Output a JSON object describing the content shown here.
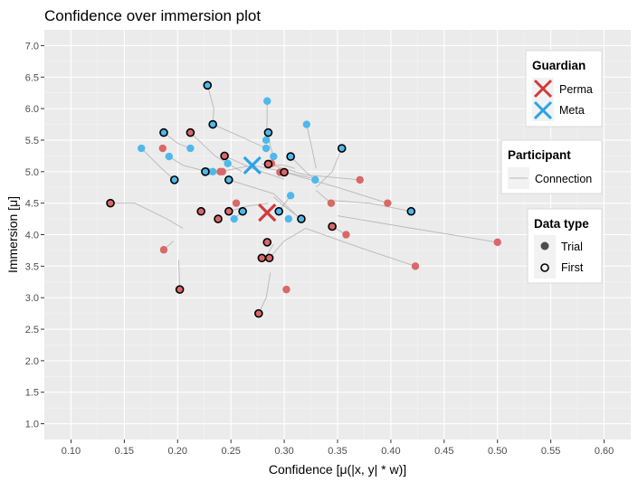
{
  "chart_data": {
    "type": "scatter",
    "title": "Confidence over immersion plot",
    "xlabel": "Confidence [μ(|x, y| * w)]",
    "ylabel": "Immersion [μ]",
    "xlim": [
      0.075,
      0.625
    ],
    "ylim": [
      0.75,
      7.25
    ],
    "x_ticks": [
      "0.10",
      "0.15",
      "0.20",
      "0.25",
      "0.30",
      "0.35",
      "0.40",
      "0.45",
      "0.50",
      "0.55",
      "0.60"
    ],
    "y_ticks": [
      "1.0",
      "1.5",
      "2.0",
      "2.5",
      "3.0",
      "3.5",
      "4.0",
      "4.5",
      "5.0",
      "5.5",
      "6.0",
      "6.5",
      "7.0"
    ],
    "grid": true,
    "colors": {
      "perma": "#d13b3b",
      "perma_point": "#d96868",
      "meta": "#2aa3e8",
      "meta_point": "#4fb8ec",
      "connection": "#b8b8b8",
      "panel": "#ebebeb"
    },
    "legends": [
      {
        "title": "Guardian",
        "entries": [
          {
            "label": "Perma",
            "kind": "cross",
            "color": "#d13b3b"
          },
          {
            "label": "Meta",
            "kind": "cross",
            "color": "#2aa3e8"
          }
        ]
      },
      {
        "title": "Participant",
        "entries": [
          {
            "label": "Connection",
            "kind": "line",
            "color": "#b8b8b8"
          }
        ]
      },
      {
        "title": "Data type",
        "entries": [
          {
            "label": "Trial",
            "kind": "filled"
          },
          {
            "label": "First",
            "kind": "ring"
          }
        ]
      }
    ],
    "series": [
      {
        "name": "Perma",
        "centroid": [
          0.284,
          4.35
        ],
        "connections": [
          [
            [
              0.137,
              4.5
            ],
            [
              0.16,
              4.5
            ],
            [
              0.19,
              4.25
            ],
            [
              0.205,
              4.1
            ]
          ],
          [
            [
              0.187,
              3.76
            ],
            [
              0.196,
              3.9
            ]
          ],
          [
            [
              0.202,
              3.13
            ],
            [
              0.201,
              3.6
            ]
          ],
          [
            [
              0.212,
              5.62
            ],
            [
              0.235,
              5.25
            ],
            [
              0.26,
              5.0
            ]
          ],
          [
            [
              0.24,
              5.0
            ],
            [
              0.27,
              5.1
            ],
            [
              0.3,
              5.0
            ],
            [
              0.325,
              4.9
            ]
          ],
          [
            [
              0.244,
              5.25
            ],
            [
              0.27,
              5.05
            ],
            [
              0.3,
              4.88
            ]
          ],
          [
            [
              0.248,
              4.37
            ],
            [
              0.265,
              4.45
            ],
            [
              0.285,
              4.5
            ]
          ],
          [
            [
              0.279,
              5.12
            ],
            [
              0.3,
              5.1
            ],
            [
              0.31,
              5.05
            ]
          ],
          [
            [
              0.285,
              5.12
            ],
            [
              0.32,
              4.95
            ],
            [
              0.371,
              4.87
            ]
          ],
          [
            [
              0.3,
              4.99
            ],
            [
              0.35,
              4.75
            ],
            [
              0.397,
              4.5
            ]
          ],
          [
            [
              0.276,
              2.75
            ],
            [
              0.283,
              3.0
            ],
            [
              0.287,
              3.4
            ]
          ],
          [
            [
              0.344,
              4.5
            ],
            [
              0.33,
              4.7
            ]
          ],
          [
            [
              0.345,
              4.13
            ],
            [
              0.358,
              4.0
            ]
          ],
          [
            [
              0.282,
              3.63
            ],
            [
              0.29,
              3.85
            ]
          ],
          [
            [
              0.286,
              3.63
            ],
            [
              0.3,
              3.9
            ],
            [
              0.32,
              4.1
            ]
          ],
          [
            [
              0.5,
              3.88
            ],
            [
              0.42,
              4.1
            ],
            [
              0.35,
              4.3
            ]
          ],
          [
            [
              0.423,
              3.5
            ],
            [
              0.37,
              3.8
            ],
            [
              0.32,
              4.1
            ]
          ]
        ],
        "trial": [
          [
            0.186,
            5.37
          ],
          [
            0.24,
            5.0
          ],
          [
            0.242,
            5.0
          ],
          [
            0.255,
            4.5
          ],
          [
            0.288,
            5.13
          ],
          [
            0.3,
            5.0
          ],
          [
            0.296,
            4.99
          ],
          [
            0.371,
            4.87
          ],
          [
            0.397,
            4.5
          ],
          [
            0.358,
            4.0
          ],
          [
            0.344,
            4.5
          ],
          [
            0.302,
            3.13
          ],
          [
            0.5,
            3.88
          ],
          [
            0.423,
            3.5
          ],
          [
            0.187,
            3.76
          ]
        ],
        "first": [
          [
            0.137,
            4.5
          ],
          [
            0.202,
            3.13
          ],
          [
            0.212,
            5.62
          ],
          [
            0.222,
            4.37
          ],
          [
            0.238,
            4.25
          ],
          [
            0.244,
            5.25
          ],
          [
            0.248,
            4.37
          ],
          [
            0.284,
            3.88
          ],
          [
            0.279,
            3.63
          ],
          [
            0.286,
            3.63
          ],
          [
            0.276,
            2.75
          ],
          [
            0.285,
            5.12
          ],
          [
            0.3,
            4.99
          ],
          [
            0.345,
            4.13
          ]
        ]
      },
      {
        "name": "Meta",
        "centroid": [
          0.27,
          5.1
        ],
        "connections": [
          [
            [
              0.166,
              5.37
            ],
            [
              0.185,
              5.05
            ],
            [
              0.197,
              4.87
            ]
          ],
          [
            [
              0.187,
              5.62
            ],
            [
              0.2,
              5.45
            ],
            [
              0.212,
              5.37
            ]
          ],
          [
            [
              0.192,
              5.24
            ],
            [
              0.205,
              5.1
            ],
            [
              0.228,
              5.0
            ]
          ],
          [
            [
              0.228,
              6.37
            ],
            [
              0.234,
              6.0
            ],
            [
              0.233,
              5.75
            ]
          ],
          [
            [
              0.233,
              5.75
            ],
            [
              0.26,
              5.55
            ],
            [
              0.283,
              5.37
            ]
          ],
          [
            [
              0.248,
              4.87
            ],
            [
              0.29,
              4.65
            ],
            [
              0.315,
              4.25
            ]
          ],
          [
            [
              0.253,
              4.25
            ],
            [
              0.261,
              4.37
            ]
          ],
          [
            [
              0.284,
              6.12
            ],
            [
              0.284,
              5.8
            ],
            [
              0.283,
              5.5
            ]
          ],
          [
            [
              0.285,
              5.62
            ],
            [
              0.287,
              5.4
            ],
            [
              0.29,
              5.24
            ]
          ],
          [
            [
              0.306,
              5.24
            ],
            [
              0.32,
              5.0
            ],
            [
              0.329,
              4.87
            ]
          ],
          [
            [
              0.321,
              5.75
            ],
            [
              0.325,
              5.45
            ],
            [
              0.33,
              5.05
            ]
          ],
          [
            [
              0.354,
              5.37
            ],
            [
              0.345,
              5.0
            ],
            [
              0.33,
              4.75
            ]
          ],
          [
            [
              0.419,
              4.37
            ],
            [
              0.38,
              4.5
            ],
            [
              0.34,
              4.55
            ]
          ],
          [
            [
              0.295,
              4.37
            ],
            [
              0.306,
              4.62
            ]
          ],
          [
            [
              0.316,
              4.25
            ],
            [
              0.3,
              4.45
            ],
            [
              0.29,
              4.6
            ]
          ]
        ],
        "trial": [
          [
            0.166,
            5.37
          ],
          [
            0.192,
            5.24
          ],
          [
            0.212,
            5.37
          ],
          [
            0.228,
            5.0
          ],
          [
            0.233,
            5.0
          ],
          [
            0.247,
            5.13
          ],
          [
            0.253,
            4.25
          ],
          [
            0.283,
            5.37
          ],
          [
            0.284,
            6.12
          ],
          [
            0.283,
            5.5
          ],
          [
            0.29,
            5.24
          ],
          [
            0.306,
            4.62
          ],
          [
            0.304,
            4.25
          ],
          [
            0.321,
            5.75
          ],
          [
            0.329,
            4.87
          ]
        ],
        "first": [
          [
            0.187,
            5.62
          ],
          [
            0.197,
            4.87
          ],
          [
            0.226,
            5.0
          ],
          [
            0.228,
            6.37
          ],
          [
            0.233,
            5.75
          ],
          [
            0.248,
            4.87
          ],
          [
            0.261,
            4.37
          ],
          [
            0.285,
            5.62
          ],
          [
            0.295,
            4.37
          ],
          [
            0.306,
            5.24
          ],
          [
            0.316,
            4.25
          ],
          [
            0.354,
            5.37
          ],
          [
            0.419,
            4.37
          ]
        ]
      }
    ]
  }
}
